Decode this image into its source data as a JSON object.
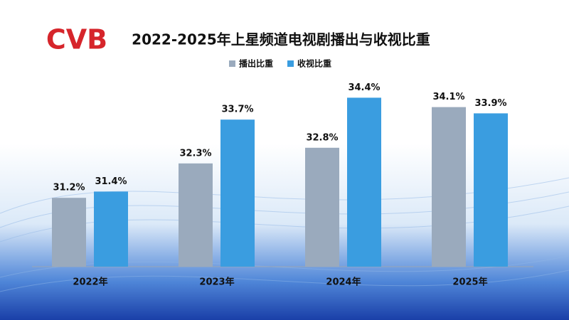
{
  "logo": "CVB",
  "chart_data": {
    "type": "bar",
    "title": "2022-2025年上星频道电视剧播出与收视比重",
    "categories": [
      "2022年",
      "2023年",
      "2024年",
      "2025年"
    ],
    "series": [
      {
        "name": "播出比重",
        "color": "#9aaabd",
        "values": [
          31.2,
          32.3,
          32.8,
          34.1
        ],
        "value_labels": [
          "31.2%",
          "32.3%",
          "32.8%",
          "34.1%"
        ]
      },
      {
        "name": "收视比重",
        "color": "#3a9de0",
        "values": [
          31.4,
          33.7,
          34.4,
          33.9
        ],
        "value_labels": [
          "31.4%",
          "33.7%",
          "34.4%",
          "33.9%"
        ]
      }
    ],
    "ylim": [
      29,
      35
    ]
  }
}
